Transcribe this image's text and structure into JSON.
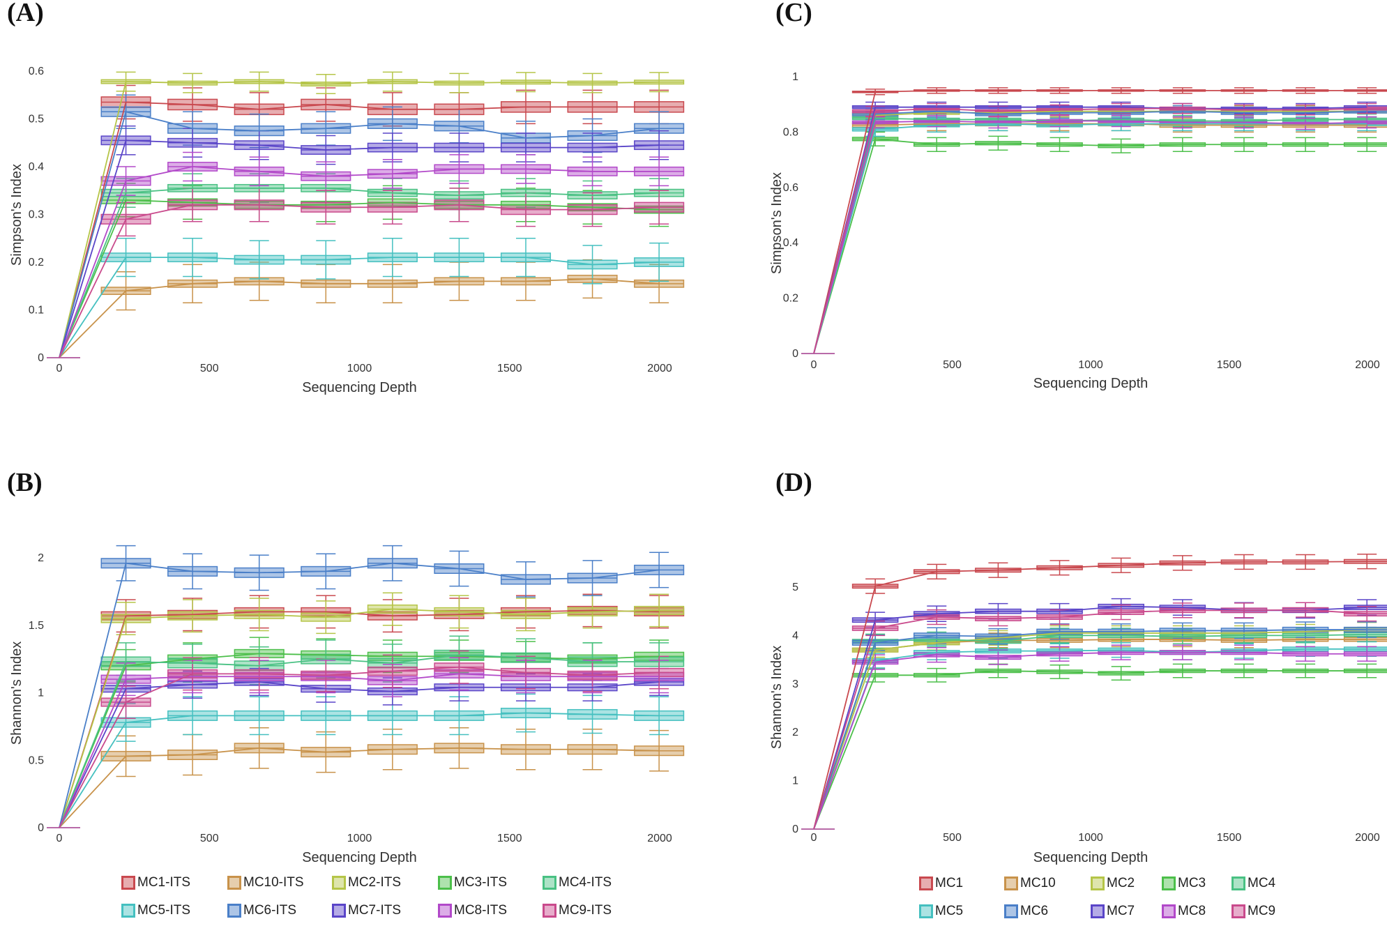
{
  "figure": {
    "panel_labels": [
      "(A)",
      "(B)",
      "(C)",
      "(D)"
    ]
  },
  "legends": {
    "its": [
      "MC1-ITS",
      "MC10-ITS",
      "MC2-ITS",
      "MC3-ITS",
      "MC4-ITS",
      "MC5-ITS",
      "MC6-ITS",
      "MC7-ITS",
      "MC8-ITS",
      "MC9-ITS"
    ],
    "sixteen_s": [
      "MC1",
      "MC10",
      "MC2",
      "MC3",
      "MC4",
      "MC5",
      "MC6",
      "MC7",
      "MC8",
      "MC9"
    ]
  },
  "colors": {
    "MC1": "#c9494f",
    "MC10": "#c8924a",
    "MC2": "#b5c548",
    "MC3": "#4cbf4a",
    "MC4": "#49c183",
    "MC5": "#45c0c0",
    "MC6": "#4a7fc8",
    "MC7": "#5a45c8",
    "MC8": "#b249c9",
    "MC9": "#c94a8c"
  },
  "chart_data": [
    {
      "panel": "A",
      "type": "line",
      "subtype": "boxplot-rarefaction",
      "title": "",
      "xlabel": "Sequencing Depth",
      "ylabel": "Simpson's Index",
      "xlim": [
        0,
        2050
      ],
      "ylim": [
        0,
        0.62
      ],
      "xticks": [
        0,
        500,
        1000,
        1500,
        2000
      ],
      "yticks": [
        0,
        0.1,
        0.2,
        0.3,
        0.4,
        0.5,
        0.6
      ],
      "ytick_labels": [
        "0",
        "0.1",
        "0.2",
        "0.3",
        "0.4",
        "0.5",
        "0.6"
      ],
      "x": [
        0,
        222,
        444,
        666,
        888,
        1110,
        1332,
        1554,
        1776,
        1998
      ],
      "legend_key": "its",
      "series": [
        {
          "name": "MC1-ITS",
          "key": "MC1",
          "values": [
            0,
            0.535,
            0.53,
            0.52,
            0.53,
            0.52,
            0.52,
            0.525,
            0.525,
            0.525
          ],
          "iqr": 0.022,
          "whisker": 0.035
        },
        {
          "name": "MC10-ITS",
          "key": "MC10",
          "values": [
            0,
            0.14,
            0.155,
            0.16,
            0.155,
            0.155,
            0.16,
            0.16,
            0.165,
            0.155
          ],
          "iqr": 0.015,
          "whisker": 0.04
        },
        {
          "name": "MC2-ITS",
          "key": "MC2",
          "values": [
            0,
            0.578,
            0.575,
            0.578,
            0.573,
            0.578,
            0.575,
            0.577,
            0.575,
            0.577
          ],
          "iqr": 0.008,
          "whisker": 0.02
        },
        {
          "name": "MC3-ITS",
          "key": "MC3",
          "values": [
            0,
            0.33,
            0.325,
            0.32,
            0.32,
            0.325,
            0.32,
            0.32,
            0.315,
            0.31
          ],
          "iqr": 0.015,
          "whisker": 0.035
        },
        {
          "name": "MC4-ITS",
          "key": "MC4",
          "values": [
            0,
            0.345,
            0.355,
            0.355,
            0.355,
            0.345,
            0.34,
            0.345,
            0.34,
            0.345
          ],
          "iqr": 0.015,
          "whisker": 0.03
        },
        {
          "name": "MC5-ITS",
          "key": "MC5",
          "values": [
            0,
            0.21,
            0.21,
            0.205,
            0.205,
            0.21,
            0.21,
            0.21,
            0.195,
            0.2
          ],
          "iqr": 0.018,
          "whisker": 0.04
        },
        {
          "name": "MC6-ITS",
          "key": "MC6",
          "values": [
            0,
            0.515,
            0.48,
            0.475,
            0.48,
            0.49,
            0.485,
            0.46,
            0.465,
            0.48
          ],
          "iqr": 0.02,
          "whisker": 0.035
        },
        {
          "name": "MC7-ITS",
          "key": "MC7",
          "values": [
            0,
            0.455,
            0.45,
            0.445,
            0.435,
            0.44,
            0.44,
            0.44,
            0.44,
            0.445
          ],
          "iqr": 0.018,
          "whisker": 0.03
        },
        {
          "name": "MC8-ITS",
          "key": "MC8",
          "values": [
            0,
            0.37,
            0.4,
            0.39,
            0.38,
            0.385,
            0.395,
            0.395,
            0.39,
            0.39
          ],
          "iqr": 0.018,
          "whisker": 0.03
        },
        {
          "name": "MC9-ITS",
          "key": "MC9",
          "values": [
            0,
            0.29,
            0.32,
            0.32,
            0.315,
            0.315,
            0.32,
            0.31,
            0.31,
            0.315
          ],
          "iqr": 0.02,
          "whisker": 0.035
        }
      ]
    },
    {
      "panel": "B",
      "type": "line",
      "subtype": "boxplot-rarefaction",
      "title": "",
      "xlabel": "Sequencing Depth",
      "ylabel": "Shannon's Index",
      "xlim": [
        0,
        2050
      ],
      "ylim": [
        0,
        2.15
      ],
      "xticks": [
        0,
        500,
        1000,
        1500,
        2000
      ],
      "yticks": [
        0,
        0.5,
        1,
        1.5,
        2
      ],
      "ytick_labels": [
        "0",
        "0.5",
        "1",
        "1.5",
        "2"
      ],
      "x": [
        0,
        222,
        444,
        666,
        888,
        1110,
        1332,
        1554,
        1776,
        1998
      ],
      "legend_key": "its",
      "series": [
        {
          "name": "MC1-ITS",
          "key": "MC1",
          "values": [
            0,
            1.57,
            1.58,
            1.6,
            1.6,
            1.57,
            1.58,
            1.6,
            1.61,
            1.6
          ],
          "iqr": 0.06,
          "whisker": 0.12
        },
        {
          "name": "MC10-ITS",
          "key": "MC10",
          "values": [
            0,
            0.53,
            0.54,
            0.59,
            0.56,
            0.58,
            0.59,
            0.58,
            0.58,
            0.57
          ],
          "iqr": 0.07,
          "whisker": 0.15
        },
        {
          "name": "MC2-ITS",
          "key": "MC2",
          "values": [
            0,
            1.55,
            1.57,
            1.58,
            1.56,
            1.62,
            1.6,
            1.58,
            1.6,
            1.61
          ],
          "iqr": 0.06,
          "whisker": 0.12
        },
        {
          "name": "MC3-ITS",
          "key": "MC3",
          "values": [
            0,
            1.2,
            1.25,
            1.29,
            1.28,
            1.27,
            1.27,
            1.26,
            1.25,
            1.27
          ],
          "iqr": 0.06,
          "whisker": 0.12
        },
        {
          "name": "MC4-ITS",
          "key": "MC4",
          "values": [
            0,
            1.23,
            1.22,
            1.2,
            1.25,
            1.22,
            1.28,
            1.26,
            1.23,
            1.23
          ],
          "iqr": 0.07,
          "whisker": 0.14
        },
        {
          "name": "MC5-ITS",
          "key": "MC5",
          "values": [
            0,
            0.78,
            0.83,
            0.83,
            0.83,
            0.83,
            0.83,
            0.85,
            0.84,
            0.83
          ],
          "iqr": 0.07,
          "whisker": 0.14
        },
        {
          "name": "MC6-ITS",
          "key": "MC6",
          "values": [
            0,
            1.96,
            1.9,
            1.89,
            1.9,
            1.96,
            1.92,
            1.84,
            1.85,
            1.91
          ],
          "iqr": 0.07,
          "whisker": 0.13
        },
        {
          "name": "MC7-ITS",
          "key": "MC7",
          "values": [
            0,
            1.03,
            1.06,
            1.08,
            1.03,
            1.01,
            1.04,
            1.04,
            1.04,
            1.08
          ],
          "iqr": 0.05,
          "whisker": 0.1
        },
        {
          "name": "MC8-ITS",
          "key": "MC8",
          "values": [
            0,
            1.1,
            1.12,
            1.12,
            1.12,
            1.09,
            1.14,
            1.12,
            1.12,
            1.12
          ],
          "iqr": 0.06,
          "whisker": 0.12
        },
        {
          "name": "MC9-ITS",
          "key": "MC9",
          "values": [
            0,
            0.93,
            1.14,
            1.14,
            1.13,
            1.16,
            1.19,
            1.15,
            1.13,
            1.15
          ],
          "iqr": 0.06,
          "whisker": 0.12
        }
      ]
    },
    {
      "panel": "C",
      "type": "line",
      "subtype": "boxplot-rarefaction",
      "title": "",
      "xlabel": "Sequencing Depth",
      "ylabel": "Simpson's Index",
      "xlim": [
        0,
        2050
      ],
      "ylim": [
        0,
        1
      ],
      "xticks": [
        0,
        500,
        1000,
        1500,
        2000
      ],
      "yticks": [
        0,
        0.2,
        0.4,
        0.6,
        0.8,
        1
      ],
      "ytick_labels": [
        "0",
        "0.2",
        "0.4",
        "0.6",
        "0.8",
        "1"
      ],
      "x": [
        0,
        222,
        444,
        666,
        888,
        1110,
        1332,
        1554,
        1776,
        1998
      ],
      "legend_key": "sixteen_s",
      "series": [
        {
          "name": "MC1",
          "key": "MC1",
          "values": [
            0,
            0.945,
            0.95,
            0.95,
            0.95,
            0.95,
            0.95,
            0.95,
            0.95,
            0.95
          ],
          "iqr": 0.005,
          "whisker": 0.01
        },
        {
          "name": "MC10",
          "key": "MC10",
          "values": [
            0,
            0.825,
            0.83,
            0.83,
            0.83,
            0.83,
            0.825,
            0.825,
            0.825,
            0.825
          ],
          "iqr": 0.015,
          "whisker": 0.025
        },
        {
          "name": "MC2",
          "key": "MC2",
          "values": [
            0,
            0.86,
            0.87,
            0.87,
            0.875,
            0.875,
            0.875,
            0.875,
            0.875,
            0.875
          ],
          "iqr": 0.012,
          "whisker": 0.02
        },
        {
          "name": "MC3",
          "key": "MC3",
          "values": [
            0,
            0.775,
            0.755,
            0.76,
            0.755,
            0.75,
            0.755,
            0.755,
            0.755,
            0.755
          ],
          "iqr": 0.012,
          "whisker": 0.025
        },
        {
          "name": "MC4",
          "key": "MC4",
          "values": [
            0,
            0.85,
            0.845,
            0.845,
            0.84,
            0.845,
            0.84,
            0.84,
            0.845,
            0.845
          ],
          "iqr": 0.01,
          "whisker": 0.02
        },
        {
          "name": "MC5",
          "key": "MC5",
          "values": [
            0,
            0.81,
            0.825,
            0.83,
            0.825,
            0.83,
            0.83,
            0.83,
            0.83,
            0.83
          ],
          "iqr": 0.012,
          "whisker": 0.025
        },
        {
          "name": "MC6",
          "key": "MC6",
          "values": [
            0,
            0.865,
            0.875,
            0.865,
            0.87,
            0.87,
            0.875,
            0.87,
            0.87,
            0.875
          ],
          "iqr": 0.012,
          "whisker": 0.02
        },
        {
          "name": "MC7",
          "key": "MC7",
          "values": [
            0,
            0.89,
            0.89,
            0.89,
            0.89,
            0.89,
            0.885,
            0.885,
            0.885,
            0.89
          ],
          "iqr": 0.01,
          "whisker": 0.018
        },
        {
          "name": "MC8",
          "key": "MC8",
          "values": [
            0,
            0.835,
            0.84,
            0.835,
            0.84,
            0.84,
            0.835,
            0.835,
            0.83,
            0.835
          ],
          "iqr": 0.01,
          "whisker": 0.02
        },
        {
          "name": "MC9",
          "key": "MC9",
          "values": [
            0,
            0.875,
            0.885,
            0.875,
            0.88,
            0.885,
            0.885,
            0.88,
            0.88,
            0.885
          ],
          "iqr": 0.01,
          "whisker": 0.018
        }
      ]
    },
    {
      "panel": "D",
      "type": "line",
      "subtype": "boxplot-rarefaction",
      "title": "",
      "xlabel": "Sequencing Depth",
      "ylabel": "Shannon's Index",
      "xlim": [
        0,
        2050
      ],
      "ylim": [
        0,
        5.7
      ],
      "xticks": [
        0,
        500,
        1000,
        1500,
        2000
      ],
      "yticks": [
        0,
        1,
        2,
        3,
        4,
        5
      ],
      "ytick_labels": [
        "0",
        "1",
        "2",
        "3",
        "4",
        "5"
      ],
      "x": [
        0,
        222,
        444,
        666,
        888,
        1110,
        1332,
        1554,
        1776,
        1998
      ],
      "legend_key": "sixteen_s",
      "series": [
        {
          "name": "MC1",
          "key": "MC1",
          "values": [
            0,
            5.02,
            5.32,
            5.35,
            5.4,
            5.45,
            5.5,
            5.52,
            5.52,
            5.53
          ],
          "iqr": 0.08,
          "whisker": 0.15
        },
        {
          "name": "MC10",
          "key": "MC10",
          "values": [
            0,
            3.7,
            3.85,
            3.9,
            3.9,
            3.92,
            3.92,
            3.9,
            3.92,
            3.92
          ],
          "iqr": 0.08,
          "whisker": 0.15
        },
        {
          "name": "MC2",
          "key": "MC2",
          "values": [
            0,
            3.7,
            3.85,
            3.95,
            4.05,
            4.05,
            4.05,
            4.05,
            4.08,
            4.12
          ],
          "iqr": 0.08,
          "whisker": 0.15
        },
        {
          "name": "MC3",
          "key": "MC3",
          "values": [
            0,
            3.18,
            3.18,
            3.27,
            3.25,
            3.22,
            3.27,
            3.27,
            3.27,
            3.27
          ],
          "iqr": 0.07,
          "whisker": 0.14
        },
        {
          "name": "MC4",
          "key": "MC4",
          "values": [
            0,
            3.88,
            3.92,
            3.88,
            4.0,
            4.0,
            3.98,
            4.0,
            4.0,
            4.02
          ],
          "iqr": 0.08,
          "whisker": 0.15
        },
        {
          "name": "MC5",
          "key": "MC5",
          "values": [
            0,
            3.48,
            3.65,
            3.68,
            3.68,
            3.7,
            3.65,
            3.68,
            3.72,
            3.72
          ],
          "iqr": 0.08,
          "whisker": 0.15
        },
        {
          "name": "MC6",
          "key": "MC6",
          "values": [
            0,
            3.85,
            4.0,
            3.98,
            4.08,
            4.08,
            4.1,
            4.1,
            4.12,
            4.12
          ],
          "iqr": 0.1,
          "whisker": 0.16
        },
        {
          "name": "MC7",
          "key": "MC7",
          "values": [
            0,
            4.32,
            4.45,
            4.5,
            4.5,
            4.6,
            4.58,
            4.52,
            4.52,
            4.58
          ],
          "iqr": 0.09,
          "whisker": 0.16
        },
        {
          "name": "MC8",
          "key": "MC8",
          "values": [
            0,
            3.45,
            3.6,
            3.55,
            3.62,
            3.65,
            3.65,
            3.65,
            3.62,
            3.62
          ],
          "iqr": 0.08,
          "whisker": 0.15
        },
        {
          "name": "MC9",
          "key": "MC9",
          "values": [
            0,
            4.15,
            4.38,
            4.35,
            4.38,
            4.48,
            4.52,
            4.52,
            4.53,
            4.45
          ],
          "iqr": 0.09,
          "whisker": 0.15
        }
      ]
    }
  ]
}
